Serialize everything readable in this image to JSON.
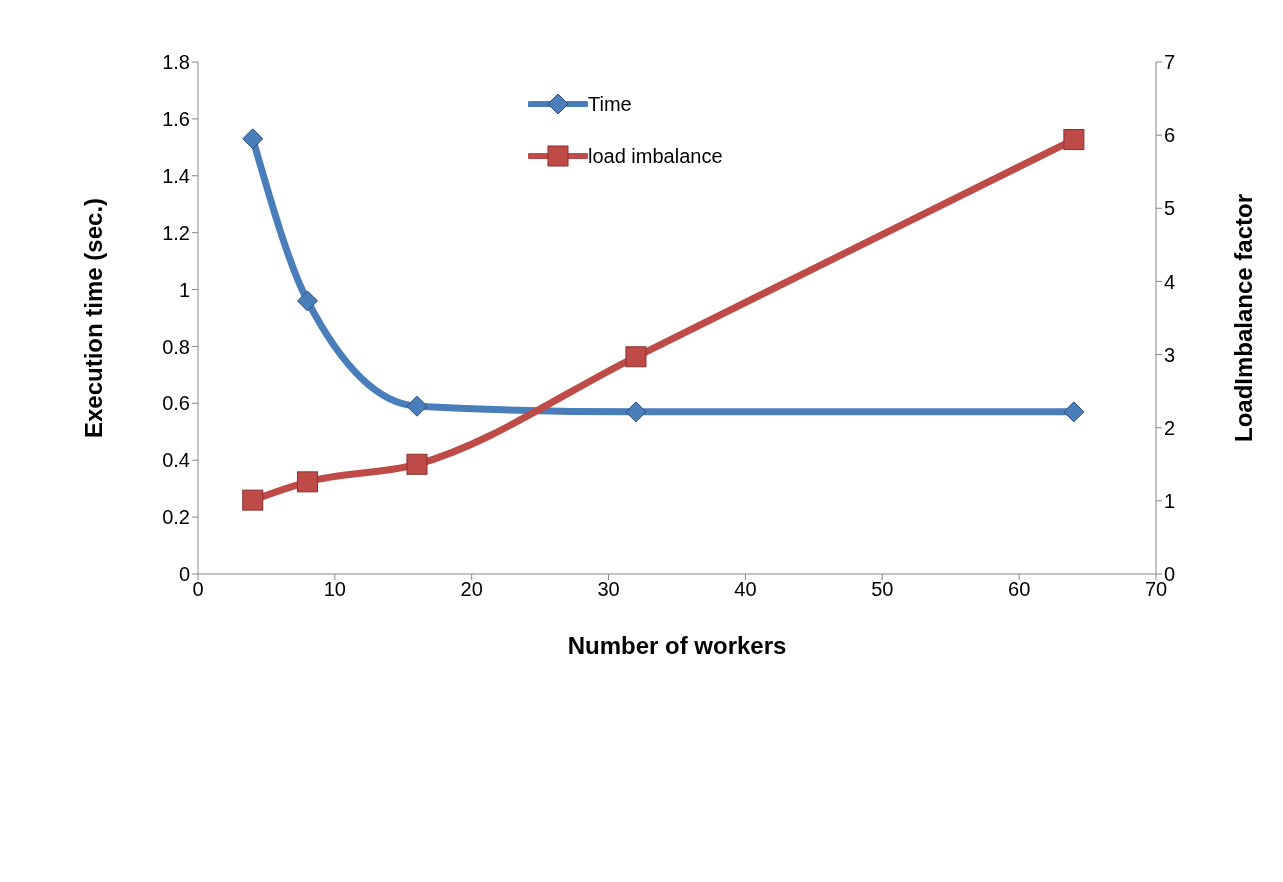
{
  "chart_data": {
    "type": "line",
    "xlabel": "Number of workers",
    "ylabel": "Execution time (sec.)",
    "y2label": "LoadImbalance factor",
    "x": [
      4,
      8,
      16,
      32,
      64
    ],
    "series": [
      {
        "name": "Time",
        "color": "#4a7ebb",
        "values": [
          1.53,
          0.96,
          0.59,
          0.57,
          0.57
        ],
        "marker": "diamond"
      },
      {
        "name": "load imbalance",
        "color": "#be4b48",
        "values": [
          1.01,
          1.26,
          1.5,
          2.97,
          5.94
        ],
        "marker": "square",
        "axis": "y2"
      }
    ],
    "xlim": [
      0,
      70
    ],
    "xticks": [
      0,
      10,
      20,
      30,
      40,
      50,
      60,
      70
    ],
    "ylim": [
      0,
      1.8
    ],
    "yticks": [
      0,
      0.2,
      0.4,
      0.6,
      0.8,
      1,
      1.2,
      1.4,
      1.6,
      1.8
    ],
    "y2lim": [
      0,
      7
    ],
    "y2ticks": [
      0,
      1,
      2,
      3,
      4,
      5,
      6,
      7
    ],
    "grid": false,
    "legend": "top",
    "line_style": "solid"
  }
}
